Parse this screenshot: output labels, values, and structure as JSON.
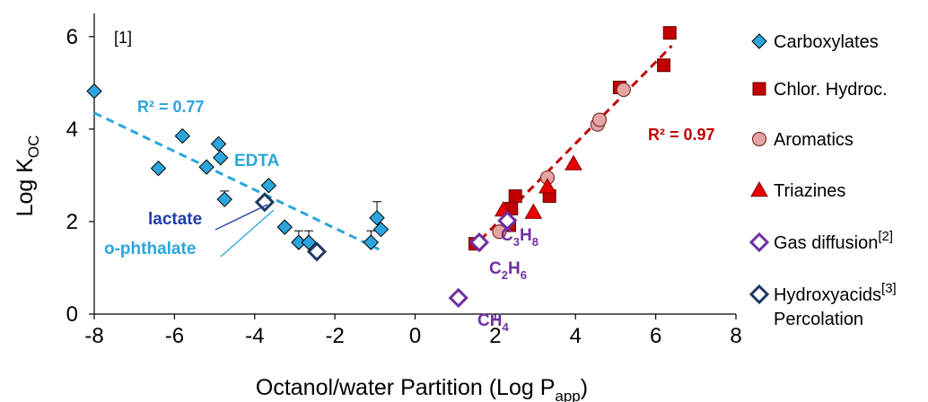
{
  "chart_data": {
    "type": "scatter",
    "xlabel": "Octanol/water Partition (Log P",
    "xlabel_sub": "app",
    "xlabel_close": ")",
    "ylabel": "Log K",
    "ylabel_sub": "OC",
    "xlim": [
      -8,
      8
    ],
    "ylim": [
      0,
      6.5
    ],
    "xticks": [
      -8,
      -6,
      -4,
      -2,
      0,
      2,
      4,
      6,
      8
    ],
    "xtick_labels": [
      "-8",
      "-6",
      "-4",
      "-2",
      "0",
      "2",
      "4",
      "6",
      "8"
    ],
    "yticks": [
      0,
      2,
      4,
      6
    ],
    "ytick_labels": [
      "0",
      "2",
      "4",
      "6"
    ],
    "grid": false,
    "legend_position": "right",
    "series": [
      {
        "name": "Carboxylates",
        "marker": "diamond-filled",
        "color": "#2aa6dc",
        "points": [
          {
            "x": -8.0,
            "y": 4.82
          },
          {
            "x": -6.4,
            "y": 3.15
          },
          {
            "x": -5.8,
            "y": 3.85
          },
          {
            "x": -5.2,
            "y": 3.18
          },
          {
            "x": -4.9,
            "y": 3.68
          },
          {
            "x": -4.85,
            "y": 3.38
          },
          {
            "x": -4.75,
            "y": 2.48,
            "err": 0.18
          },
          {
            "x": -3.65,
            "y": 2.78
          },
          {
            "x": -3.25,
            "y": 1.88
          },
          {
            "x": -2.9,
            "y": 1.55,
            "err": 0.25
          },
          {
            "x": -2.65,
            "y": 1.55,
            "err": 0.25
          },
          {
            "x": -1.1,
            "y": 1.55,
            "err": 0.25
          },
          {
            "x": -0.95,
            "y": 2.08,
            "err": 0.35
          },
          {
            "x": -0.85,
            "y": 1.83
          }
        ]
      },
      {
        "name": "Chlor. Hydroc.",
        "marker": "square",
        "color": "#c00000",
        "points": [
          {
            "x": 1.5,
            "y": 1.52
          },
          {
            "x": 2.35,
            "y": 1.92
          },
          {
            "x": 2.4,
            "y": 2.28
          },
          {
            "x": 2.5,
            "y": 2.55
          },
          {
            "x": 3.35,
            "y": 2.55
          },
          {
            "x": 5.1,
            "y": 4.9
          },
          {
            "x": 6.2,
            "y": 5.38
          },
          {
            "x": 6.35,
            "y": 6.08
          }
        ]
      },
      {
        "name": "Aromatics",
        "marker": "circle",
        "color": "#e6a5a5",
        "stroke": "#7f2f2f",
        "points": [
          {
            "x": 2.1,
            "y": 1.78
          },
          {
            "x": 3.3,
            "y": 2.95
          },
          {
            "x": 4.55,
            "y": 4.1
          },
          {
            "x": 4.6,
            "y": 4.2
          },
          {
            "x": 5.2,
            "y": 4.85
          }
        ]
      },
      {
        "name": "Triazines",
        "marker": "triangle",
        "color": "#e60000",
        "points": [
          {
            "x": 2.2,
            "y": 2.25
          },
          {
            "x": 2.95,
            "y": 2.2
          },
          {
            "x": 3.3,
            "y": 2.75
          },
          {
            "x": 3.95,
            "y": 3.25
          }
        ]
      },
      {
        "name": "Gas diffusion",
        "name_sup": "[2]",
        "marker": "diamond-open",
        "color": "#7030a0",
        "points": [
          {
            "x": 1.08,
            "y": 0.35
          },
          {
            "x": 1.6,
            "y": 1.55
          },
          {
            "x": 2.3,
            "y": 2.02
          }
        ]
      },
      {
        "name": "Hydroxyacids",
        "name_sup": "[3]",
        "name_line2": "Percolation",
        "marker": "diamond-open",
        "color": "#1f3864",
        "points": [
          {
            "x": -3.75,
            "y": 2.42
          },
          {
            "x": -2.45,
            "y": 1.35
          }
        ]
      }
    ],
    "trendlines": [
      {
        "color": "#2aa6dc",
        "x": [
          -8.0,
          -0.9
        ],
        "y": [
          4.35,
          1.4
        ]
      },
      {
        "color": "#c00000",
        "x": [
          1.4,
          6.4
        ],
        "y": [
          1.4,
          5.8
        ]
      }
    ],
    "annotations": {
      "r2_left": "R² = 0.77",
      "r2_right": "R² = 0.97",
      "edta": "EDTA",
      "lactate": "lactate",
      "o_phthalate": "o-phthalate",
      "c3h8": "C",
      "c3h8_sub1": "3",
      "c3h8_mid": "H",
      "c3h8_sub2": "8",
      "c2h6": "C",
      "c2h6_sub1": "2",
      "c2h6_mid": "H",
      "c2h6_sub2": "6",
      "ch4": "CH",
      "ch4_sub": "4",
      "ref1": "[1]"
    },
    "colors": {
      "carboxylate_label": "#2aa6dc",
      "lactate_label": "#1f3da8",
      "gas_label": "#7030a0",
      "r2_right": "#c00000"
    }
  }
}
